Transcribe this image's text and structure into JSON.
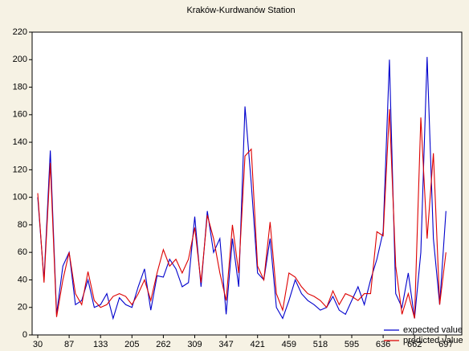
{
  "chart_data": {
    "type": "line",
    "title": "Kraków-Kurdwanów Station",
    "categories": [
      "30",
      null,
      null,
      null,
      null,
      "87",
      null,
      null,
      null,
      null,
      "133",
      null,
      null,
      null,
      null,
      "205",
      null,
      null,
      null,
      null,
      "262",
      null,
      null,
      null,
      null,
      "309",
      null,
      null,
      null,
      null,
      "347",
      null,
      null,
      null,
      null,
      "421",
      null,
      null,
      null,
      null,
      "459",
      null,
      null,
      null,
      null,
      "518",
      null,
      null,
      null,
      null,
      "595",
      null,
      null,
      null,
      null,
      "636",
      null,
      null,
      null,
      null,
      "662",
      null,
      null,
      null,
      null,
      "697"
    ],
    "series": [
      {
        "name": "expected value",
        "color": "#0000cc",
        "values": [
          100,
          40,
          134,
          15,
          50,
          60,
          22,
          25,
          40,
          20,
          22,
          30,
          12,
          27,
          22,
          20,
          35,
          48,
          18,
          43,
          42,
          55,
          48,
          35,
          38,
          86,
          35,
          90,
          60,
          70,
          15,
          70,
          35,
          166,
          110,
          45,
          40,
          70,
          20,
          12,
          25,
          40,
          30,
          25,
          22,
          18,
          20,
          28,
          18,
          15,
          25,
          35,
          22,
          40,
          55,
          75,
          200,
          30,
          20,
          45,
          12,
          60,
          202,
          70,
          22,
          90
        ]
      },
      {
        "name": "predicted value",
        "color": "#dd0000",
        "values": [
          103,
          38,
          125,
          13,
          40,
          60,
          30,
          22,
          46,
          25,
          20,
          22,
          28,
          30,
          28,
          22,
          30,
          40,
          25,
          45,
          62,
          50,
          55,
          45,
          55,
          78,
          38,
          87,
          70,
          45,
          25,
          80,
          45,
          130,
          135,
          50,
          40,
          82,
          30,
          18,
          45,
          42,
          35,
          30,
          28,
          25,
          20,
          32,
          22,
          30,
          28,
          25,
          30,
          30,
          75,
          72,
          164,
          50,
          15,
          30,
          12,
          158,
          70,
          132,
          22,
          60
        ]
      }
    ],
    "ylim": [
      0,
      220
    ],
    "yticks": [
      0,
      20,
      40,
      60,
      80,
      100,
      120,
      140,
      160,
      180,
      200,
      220
    ],
    "legend": "bottom-right"
  }
}
